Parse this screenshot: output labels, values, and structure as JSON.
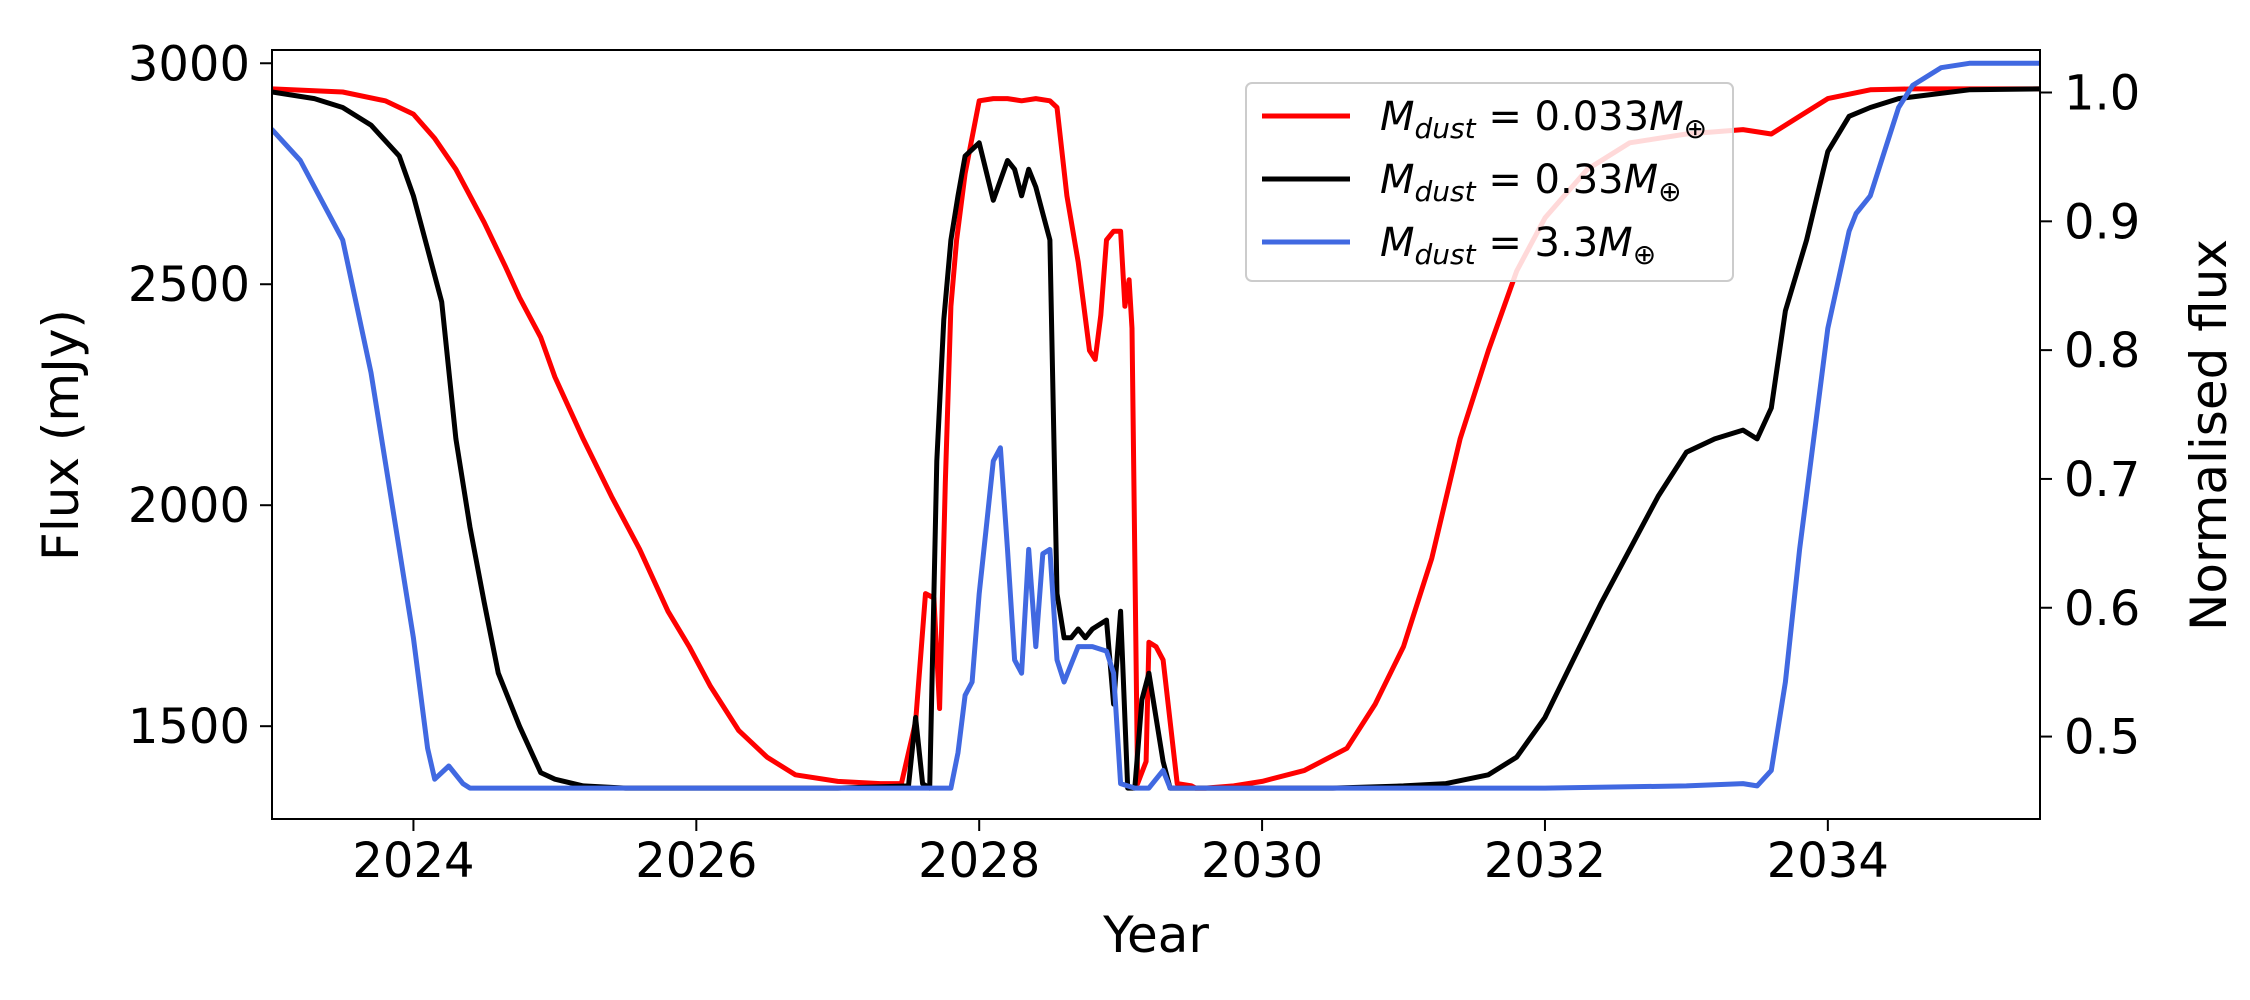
{
  "chart_data": {
    "type": "line",
    "title": "",
    "xlabel": "Year",
    "ylabel": "Flux (mJy)",
    "ylabel_right": "Normalised flux",
    "xlim": [
      2023.0,
      2035.5
    ],
    "ylim": [
      1290,
      3030
    ],
    "ylim_right": [
      0.436,
      1.033
    ],
    "x_ticks": [
      2024,
      2026,
      2028,
      2030,
      2032,
      2034
    ],
    "x_tick_labels": [
      "2024",
      "2026",
      "2028",
      "2030",
      "2032",
      "2034"
    ],
    "y_ticks": [
      1500,
      2000,
      2500,
      3000
    ],
    "y_tick_labels": [
      "1500",
      "2000",
      "2500",
      "3000"
    ],
    "y_right_ticks": [
      0.5,
      0.6,
      0.7,
      0.8,
      0.9,
      1.0
    ],
    "y_right_tick_labels": [
      "0.5",
      "0.6",
      "0.7",
      "0.8",
      "0.9",
      "1.0"
    ],
    "grid": false,
    "legend_position": "top-right",
    "series": [
      {
        "name": "M_dust = 0.033 M_earth",
        "legend_main": "M",
        "legend_sub": "dust",
        "legend_rest": " = 0.033",
        "legend_unit": "M",
        "legend_unit_sub": "⊕",
        "color": "#ff0000",
        "x": [
          2023.0,
          2023.5,
          2023.8,
          2024.0,
          2024.15,
          2024.3,
          2024.5,
          2024.65,
          2024.75,
          2024.9,
          2025.0,
          2025.2,
          2025.4,
          2025.6,
          2025.8,
          2025.95,
          2026.1,
          2026.3,
          2026.5,
          2026.7,
          2027.0,
          2027.3,
          2027.45,
          2027.55,
          2027.62,
          2027.68,
          2027.72,
          2027.76,
          2027.8,
          2027.84,
          2027.9,
          2028.0,
          2028.1,
          2028.2,
          2028.3,
          2028.4,
          2028.5,
          2028.55,
          2028.62,
          2028.7,
          2028.78,
          2028.82,
          2028.86,
          2028.9,
          2028.95,
          2029.0,
          2029.03,
          2029.06,
          2029.08,
          2029.12,
          2029.18,
          2029.2,
          2029.25,
          2029.3,
          2029.4,
          2029.5,
          2029.53,
          2029.6,
          2029.8,
          2030.0,
          2030.3,
          2030.6,
          2030.8,
          2031.0,
          2031.2,
          2031.4,
          2031.6,
          2031.8,
          2032.0,
          2032.3,
          2032.6,
          2033.0,
          2033.4,
          2033.6,
          2033.8,
          2034.0,
          2034.3,
          2034.6,
          2035.0,
          2035.5
        ],
        "y": [
          2942,
          2935,
          2915,
          2885,
          2830,
          2760,
          2640,
          2540,
          2470,
          2380,
          2290,
          2150,
          2020,
          1900,
          1760,
          1680,
          1590,
          1490,
          1430,
          1390,
          1375,
          1370,
          1370,
          1510,
          1800,
          1790,
          1540,
          2050,
          2450,
          2600,
          2750,
          2915,
          2920,
          2920,
          2915,
          2920,
          2915,
          2900,
          2700,
          2550,
          2350,
          2330,
          2430,
          2600,
          2620,
          2620,
          2450,
          2510,
          2400,
          1370,
          1420,
          1690,
          1680,
          1650,
          1370,
          1365,
          1360,
          1360,
          1365,
          1375,
          1400,
          1450,
          1550,
          1680,
          1880,
          2150,
          2350,
          2530,
          2650,
          2760,
          2820,
          2840,
          2850,
          2840,
          2880,
          2920,
          2940,
          2942,
          2942,
          2942
        ]
      },
      {
        "name": "M_dust = 0.33 M_earth",
        "legend_main": "M",
        "legend_sub": "dust",
        "legend_rest": " = 0.33",
        "legend_unit": "M",
        "legend_unit_sub": "⊕",
        "color": "#000000",
        "x": [
          2023.0,
          2023.3,
          2023.5,
          2023.7,
          2023.9,
          2024.0,
          2024.1,
          2024.2,
          2024.3,
          2024.4,
          2024.5,
          2024.6,
          2024.75,
          2024.9,
          2025.0,
          2025.2,
          2025.5,
          2026.0,
          2026.5,
          2027.0,
          2027.5,
          2027.55,
          2027.6,
          2027.65,
          2027.7,
          2027.75,
          2027.8,
          2027.85,
          2027.9,
          2028.0,
          2028.1,
          2028.2,
          2028.25,
          2028.3,
          2028.35,
          2028.4,
          2028.45,
          2028.5,
          2028.55,
          2028.6,
          2028.65,
          2028.7,
          2028.75,
          2028.8,
          2028.9,
          2028.95,
          2029.0,
          2029.05,
          2029.1,
          2029.15,
          2029.2,
          2029.3,
          2029.35,
          2029.4,
          2029.5,
          2030.0,
          2030.5,
          2031.0,
          2031.3,
          2031.6,
          2031.8,
          2032.0,
          2032.2,
          2032.4,
          2032.6,
          2032.8,
          2033.0,
          2033.2,
          2033.4,
          2033.5,
          2033.6,
          2033.7,
          2033.85,
          2034.0,
          2034.15,
          2034.3,
          2034.5,
          2035.0,
          2035.5
        ],
        "y": [
          2935,
          2920,
          2900,
          2860,
          2790,
          2700,
          2580,
          2460,
          2150,
          1950,
          1780,
          1620,
          1500,
          1395,
          1380,
          1365,
          1360,
          1360,
          1360,
          1360,
          1365,
          1520,
          1370,
          1360,
          2100,
          2420,
          2600,
          2700,
          2790,
          2820,
          2690,
          2780,
          2760,
          2700,
          2760,
          2720,
          2660,
          2600,
          1800,
          1700,
          1700,
          1720,
          1700,
          1720,
          1740,
          1550,
          1760,
          1360,
          1360,
          1560,
          1620,
          1420,
          1360,
          1360,
          1360,
          1360,
          1360,
          1365,
          1370,
          1390,
          1430,
          1520,
          1650,
          1780,
          1900,
          2020,
          2120,
          2150,
          2170,
          2150,
          2220,
          2440,
          2600,
          2800,
          2880,
          2900,
          2920,
          2940,
          2942
        ]
      },
      {
        "name": "M_dust = 3.3 M_earth",
        "legend_main": "M",
        "legend_sub": "dust",
        "legend_rest": " = 3.3",
        "legend_unit": "M",
        "legend_unit_sub": "⊕",
        "color": "#4169e1",
        "x": [
          2023.0,
          2023.2,
          2023.5,
          2023.7,
          2023.9,
          2024.0,
          2024.1,
          2024.15,
          2024.25,
          2024.35,
          2024.4,
          2024.5,
          2025.0,
          2026.0,
          2027.0,
          2027.8,
          2027.85,
          2027.9,
          2027.95,
          2028.0,
          2028.05,
          2028.1,
          2028.15,
          2028.2,
          2028.25,
          2028.3,
          2028.35,
          2028.4,
          2028.45,
          2028.5,
          2028.55,
          2028.6,
          2028.7,
          2028.8,
          2028.9,
          2028.95,
          2029.0,
          2029.1,
          2029.2,
          2029.3,
          2029.35,
          2029.5,
          2030.0,
          2031.0,
          2032.0,
          2033.0,
          2033.4,
          2033.5,
          2033.6,
          2033.7,
          2033.8,
          2034.0,
          2034.15,
          2034.2,
          2034.3,
          2034.4,
          2034.5,
          2034.6,
          2034.8,
          2035.0,
          2035.5
        ],
        "y": [
          2850,
          2780,
          2600,
          2300,
          1900,
          1700,
          1450,
          1380,
          1410,
          1370,
          1360,
          1360,
          1360,
          1360,
          1360,
          1360,
          1440,
          1570,
          1600,
          1800,
          1950,
          2100,
          2130,
          1900,
          1650,
          1620,
          1900,
          1680,
          1890,
          1900,
          1650,
          1600,
          1680,
          1680,
          1670,
          1620,
          1370,
          1360,
          1360,
          1400,
          1360,
          1360,
          1360,
          1360,
          1360,
          1365,
          1370,
          1365,
          1400,
          1600,
          1900,
          2400,
          2620,
          2660,
          2700,
          2800,
          2900,
          2950,
          2990,
          3000,
          3000
        ]
      }
    ]
  }
}
